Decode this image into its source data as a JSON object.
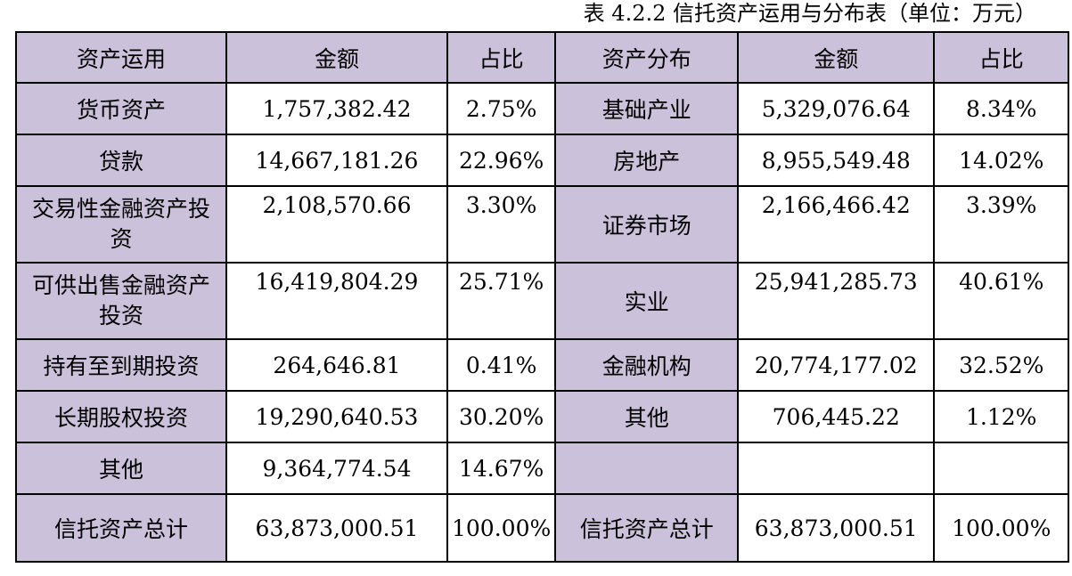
{
  "caption": "表 4.2.2 信托资产运用与分布表（单位：万元）",
  "headers": {
    "use": "资产运用",
    "amount1": "金额",
    "ratio1": "占比",
    "dist": "资产分布",
    "amount2": "金额",
    "ratio2": "占比"
  },
  "rows": [
    {
      "use": "货币资产",
      "use_amount": "1,757,382.42",
      "use_ratio": "2.75%",
      "dist": "基础产业",
      "dist_amount": "5,329,076.64",
      "dist_ratio": "8.34%"
    },
    {
      "use": "贷款",
      "use_amount": "14,667,181.26",
      "use_ratio": "22.96%",
      "dist": "房地产",
      "dist_amount": "8,955,549.48",
      "dist_ratio": "14.02%"
    },
    {
      "use": "交易性金融资产投资",
      "use_amount": "2,108,570.66",
      "use_ratio": "3.30%",
      "dist": "证券市场",
      "dist_amount": "2,166,466.42",
      "dist_ratio": "3.39%"
    },
    {
      "use": "可供出售金融资产投资",
      "use_amount": "16,419,804.29",
      "use_ratio": "25.71%",
      "dist": "实业",
      "dist_amount": "25,941,285.73",
      "dist_ratio": "40.61%"
    },
    {
      "use": "持有至到期投资",
      "use_amount": "264,646.81",
      "use_ratio": "0.41%",
      "dist": "金融机构",
      "dist_amount": "20,774,177.02",
      "dist_ratio": "32.52%"
    },
    {
      "use": "长期股权投资",
      "use_amount": "19,290,640.53",
      "use_ratio": "30.20%",
      "dist": "其他",
      "dist_amount": "706,445.22",
      "dist_ratio": "1.12%"
    },
    {
      "use": "其他",
      "use_amount": "9,364,774.54",
      "use_ratio": "14.67%",
      "dist": "",
      "dist_amount": "",
      "dist_ratio": ""
    }
  ],
  "total": {
    "use": "信托资产总计",
    "use_amount": "63,873,000.51",
    "use_ratio": "100.00%",
    "dist": "信托资产总计",
    "dist_amount": "63,873,000.51",
    "dist_ratio": "100.00%"
  },
  "colors": {
    "header_fill": "#ccc1da",
    "border": "#000000"
  }
}
